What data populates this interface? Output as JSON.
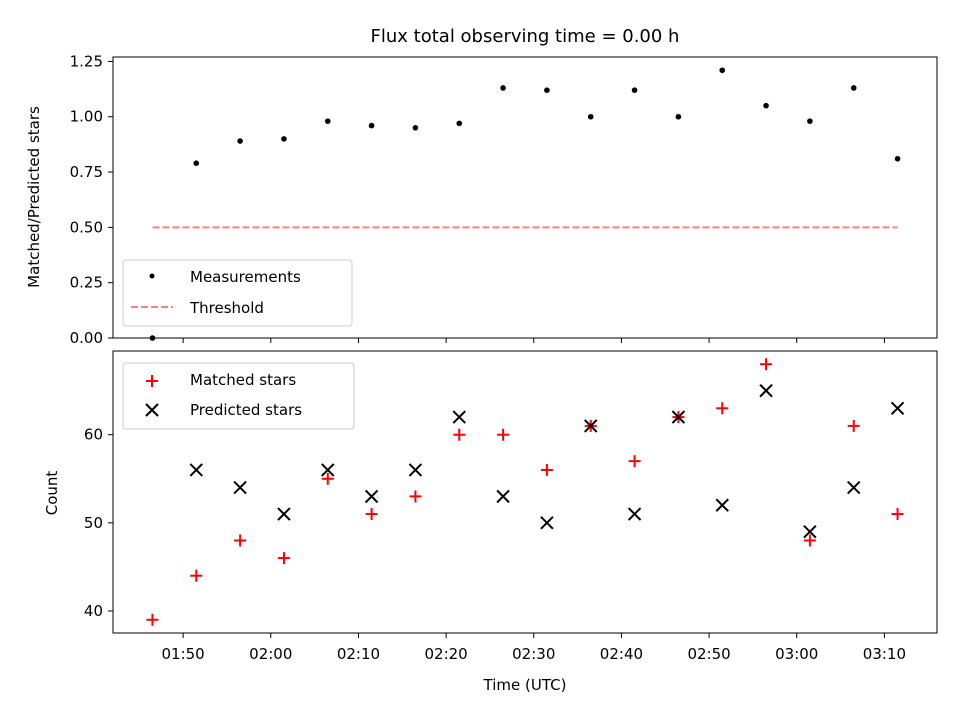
{
  "chart_data": [
    {
      "type": "scatter",
      "title": "Flux total observing time = 0.00 h",
      "ylabel": "Matched/Predicted stars",
      "xlabel": "",
      "ylim": [
        0,
        1.27
      ],
      "xlim": [
        "01:42",
        "03:16"
      ],
      "yticks": [
        "0.00",
        "0.25",
        "0.50",
        "0.75",
        "1.00",
        "1.25"
      ],
      "ytick_values": [
        0,
        0.25,
        0.5,
        0.75,
        1.0,
        1.25
      ],
      "grid": false,
      "legend_position": "lower-left",
      "x": [
        "01:46:30",
        "01:51:30",
        "01:56:30",
        "02:01:30",
        "02:06:30",
        "02:11:30",
        "02:16:30",
        "02:21:30",
        "02:26:30",
        "02:31:30",
        "02:36:30",
        "02:41:30",
        "02:46:30",
        "02:51:30",
        "02:56:30",
        "03:01:30",
        "03:06:30",
        "03:11:30"
      ],
      "series": [
        {
          "name": "Measurements",
          "marker": "dot",
          "color": "#000000",
          "values": [
            0.0,
            0.79,
            0.89,
            0.9,
            0.98,
            0.96,
            0.95,
            0.97,
            1.13,
            1.12,
            1.0,
            1.12,
            1.0,
            1.21,
            1.05,
            0.98,
            1.13,
            0.81
          ]
        },
        {
          "name": "Threshold",
          "line": "dashed",
          "color": "#ff7f7f",
          "x": [
            "01:46:30",
            "03:11:30"
          ],
          "values": [
            0.5,
            0.5
          ]
        }
      ]
    },
    {
      "type": "scatter",
      "title": "",
      "ylabel": "Count",
      "xlabel": "Time (UTC)",
      "ylim": [
        37.5,
        69.5
      ],
      "xlim": [
        "01:42",
        "03:16"
      ],
      "yticks": [
        "40",
        "50",
        "60"
      ],
      "ytick_values": [
        40,
        50,
        60
      ],
      "xticks": [
        "01:50",
        "02:00",
        "02:10",
        "02:20",
        "02:30",
        "02:40",
        "02:50",
        "03:00",
        "03:10"
      ],
      "grid": false,
      "legend_position": "upper-left",
      "x": [
        "01:46:30",
        "01:51:30",
        "01:56:30",
        "02:01:30",
        "02:06:30",
        "02:11:30",
        "02:16:30",
        "02:21:30",
        "02:26:30",
        "02:31:30",
        "02:36:30",
        "02:41:30",
        "02:46:30",
        "02:51:30",
        "02:56:30",
        "03:01:30",
        "03:06:30",
        "03:11:30"
      ],
      "series": [
        {
          "name": "Matched stars",
          "marker": "plus",
          "color": "#ff0000",
          "values": [
            39,
            44,
            48,
            46,
            55,
            51,
            53,
            60,
            60,
            56,
            61,
            57,
            62,
            63,
            68,
            48,
            61,
            51
          ]
        },
        {
          "name": "Predicted stars",
          "marker": "x",
          "color": "#000000",
          "values": [
            null,
            56,
            54,
            51,
            56,
            53,
            56,
            62,
            53,
            50,
            61,
            51,
            62,
            52,
            65,
            49,
            54,
            63
          ]
        }
      ]
    }
  ]
}
